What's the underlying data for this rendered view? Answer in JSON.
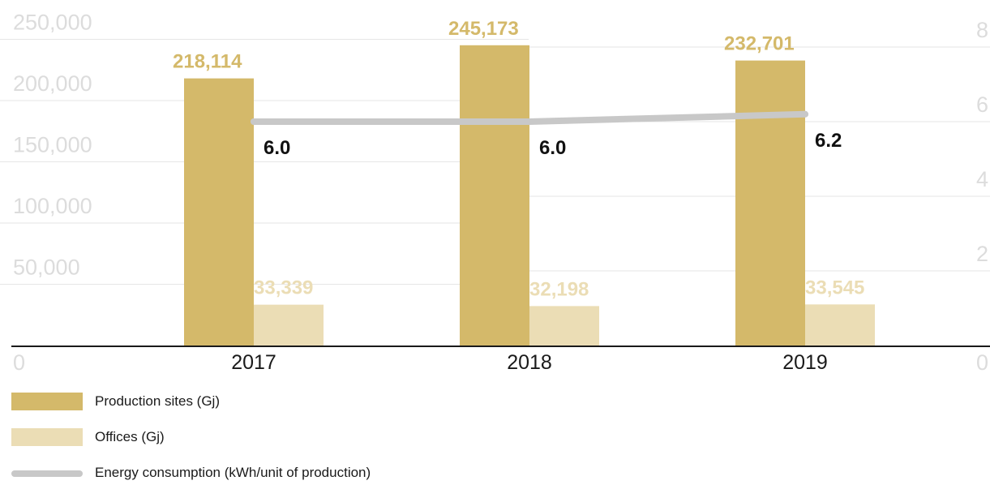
{
  "chart_data": {
    "type": "bar",
    "categories": [
      "2017",
      "2018",
      "2019"
    ],
    "series": [
      {
        "name": "Production sites (Gj)",
        "values": [
          218114,
          245173,
          232701
        ],
        "labels": [
          "218,114",
          "245,173",
          "232,701"
        ],
        "color": "#d4b96a",
        "label_color": "#d4b96a"
      },
      {
        "name": "Offices (Gj)",
        "values": [
          33339,
          32198,
          33545
        ],
        "labels": [
          "33,339",
          "32,198",
          "33,545"
        ],
        "color": "#ebddb5",
        "label_color": "#ebddb5"
      }
    ],
    "line_series": {
      "name": "Energy consumption (kWh/unit of production)",
      "values": [
        6.0,
        6.0,
        6.2
      ],
      "labels": [
        "6.0",
        "6.0",
        "6.2"
      ],
      "color": "#c8c8c8"
    },
    "y_left": {
      "ylim": [
        0,
        250000
      ],
      "ticks": [
        0,
        50000,
        100000,
        150000,
        200000,
        250000
      ],
      "tick_labels": [
        "0",
        "50,000",
        "100,000",
        "150,000",
        "200,000",
        "250,000"
      ]
    },
    "y_right": {
      "ylim": [
        0,
        8
      ],
      "ticks": [
        0,
        2,
        4,
        6,
        8
      ],
      "tick_labels": [
        "0",
        "2",
        "4",
        "6",
        "8"
      ]
    },
    "grid": true,
    "legend": "bottom-left"
  }
}
